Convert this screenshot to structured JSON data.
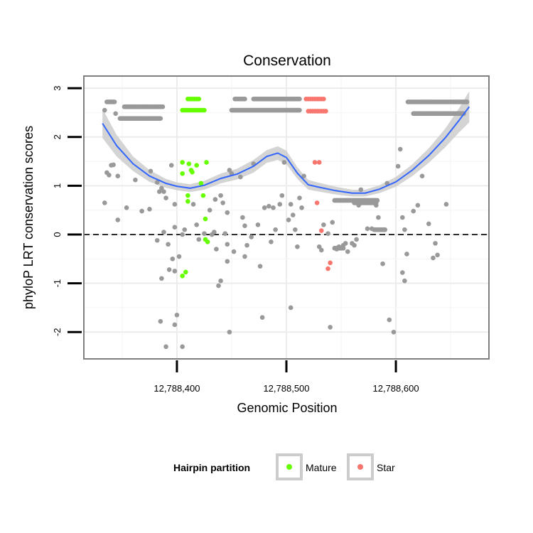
{
  "chart_data": {
    "type": "scatter",
    "title": "Conservation",
    "xlabel": "Genomic Position",
    "ylabel": "phyloP LRT conservation scores",
    "xlim": [
      12788315,
      12788685
    ],
    "ylim": [
      -2.55,
      3.25
    ],
    "x_ticks": [
      12788400,
      12788500,
      12788600
    ],
    "x_tick_labels": [
      "12,788,400",
      "12,788,500",
      "12,788,600"
    ],
    "y_ticks": [
      -2,
      -1,
      0,
      1,
      2,
      3
    ],
    "y_tick_labels": [
      "-2",
      "-1",
      "0",
      "1",
      "2",
      "3"
    ],
    "reference_line": {
      "y": 0,
      "style": "dashed"
    },
    "grid": true,
    "legend": {
      "title": "Hairpin partition",
      "position": "bottom",
      "entries": [
        {
          "label": "Mature",
          "color": "#66ff00"
        },
        {
          "label": "Star",
          "color": "#f8766d"
        }
      ]
    },
    "colors": {
      "other": "#999999",
      "Mature": "#66ff00",
      "Star": "#f8766d",
      "smooth": "#3366ff",
      "ribbon": "#cccccc"
    },
    "smooth": {
      "x": [
        12788332,
        12788345,
        12788360,
        12788375,
        12788390,
        12788400,
        12788412,
        12788425,
        12788440,
        12788455,
        12788470,
        12788482,
        12788492,
        12788500,
        12788510,
        12788520,
        12788530,
        12788545,
        12788560,
        12788572,
        12788585,
        12788600,
        12788615,
        12788630,
        12788645,
        12788658,
        12788667
      ],
      "y": [
        2.28,
        1.82,
        1.45,
        1.2,
        1.05,
        0.99,
        0.95,
        1.01,
        1.15,
        1.24,
        1.4,
        1.6,
        1.67,
        1.58,
        1.26,
        1.02,
        0.97,
        0.9,
        0.85,
        0.85,
        0.93,
        1.08,
        1.32,
        1.62,
        1.98,
        2.35,
        2.62
      ],
      "lower": [
        1.98,
        1.6,
        1.3,
        1.08,
        0.96,
        0.91,
        0.87,
        0.92,
        1.05,
        1.13,
        1.27,
        1.47,
        1.53,
        1.44,
        1.14,
        0.92,
        0.88,
        0.82,
        0.78,
        0.78,
        0.85,
        0.98,
        1.2,
        1.47,
        1.79,
        2.1,
        2.3
      ],
      "upper": [
        2.58,
        2.04,
        1.6,
        1.32,
        1.14,
        1.07,
        1.03,
        1.1,
        1.25,
        1.35,
        1.53,
        1.73,
        1.81,
        1.72,
        1.38,
        1.12,
        1.06,
        0.98,
        0.92,
        0.92,
        1.01,
        1.18,
        1.44,
        1.77,
        2.17,
        2.6,
        2.94
      ]
    },
    "series": [
      {
        "name": "Mature",
        "points": [
          [
            12788405,
            2.55
          ],
          [
            12788407,
            2.55
          ],
          [
            12788409,
            2.55
          ],
          [
            12788411,
            2.55
          ],
          [
            12788413,
            2.55
          ],
          [
            12788415,
            2.55
          ],
          [
            12788417,
            2.55
          ],
          [
            12788419,
            2.55
          ],
          [
            12788421,
            2.55
          ],
          [
            12788423,
            2.55
          ],
          [
            12788425,
            2.55
          ],
          [
            12788410,
            2.78
          ],
          [
            12788412,
            2.78
          ],
          [
            12788414,
            2.78
          ],
          [
            12788416,
            2.78
          ],
          [
            12788418,
            2.78
          ],
          [
            12788420,
            2.78
          ],
          [
            12788405,
            1.48
          ],
          [
            12788411,
            1.45
          ],
          [
            12788413,
            1.32
          ],
          [
            12788414,
            1.28
          ],
          [
            12788418,
            1.42
          ],
          [
            12788427,
            1.48
          ],
          [
            12788405,
            1.25
          ],
          [
            12788422,
            1.05
          ],
          [
            12788410,
            0.8
          ],
          [
            12788424,
            0.8
          ],
          [
            12788410,
            0.68
          ],
          [
            12788426,
            0.32
          ],
          [
            12788426,
            -0.1
          ],
          [
            12788428,
            -0.15
          ],
          [
            12788405,
            -0.85
          ],
          [
            12788408,
            -0.77
          ]
        ]
      },
      {
        "name": "Star",
        "points": [
          [
            12788518,
            2.78
          ],
          [
            12788520,
            2.78
          ],
          [
            12788522,
            2.78
          ],
          [
            12788524,
            2.78
          ],
          [
            12788526,
            2.78
          ],
          [
            12788528,
            2.78
          ],
          [
            12788530,
            2.78
          ],
          [
            12788532,
            2.78
          ],
          [
            12788534,
            2.78
          ],
          [
            12788520,
            2.53
          ],
          [
            12788522,
            2.53
          ],
          [
            12788524,
            2.53
          ],
          [
            12788526,
            2.53
          ],
          [
            12788528,
            2.53
          ],
          [
            12788530,
            2.53
          ],
          [
            12788532,
            2.53
          ],
          [
            12788534,
            2.53
          ],
          [
            12788536,
            2.53
          ],
          [
            12788526,
            1.48
          ],
          [
            12788530,
            1.48
          ],
          [
            12788528,
            0.65
          ],
          [
            12788532,
            0.08
          ],
          [
            12788540,
            -0.58
          ],
          [
            12788538,
            -0.7
          ]
        ]
      },
      {
        "name": "",
        "points": [
          [
            12788334,
            2.55
          ],
          [
            12788336,
            2.72
          ],
          [
            12788340,
            2.72
          ],
          [
            12788344,
            2.48
          ],
          [
            12788336,
            1.27
          ],
          [
            12788338,
            1.22
          ],
          [
            12788340,
            1.42
          ],
          [
            12788342,
            1.43
          ],
          [
            12788346,
            1.2
          ],
          [
            12788334,
            0.65
          ],
          [
            12788346,
            0.3
          ],
          [
            12788354,
            0.55
          ],
          [
            12788362,
            1.12
          ],
          [
            12788368,
            0.48
          ],
          [
            12788375,
            0.52
          ],
          [
            12788382,
            1.07
          ],
          [
            12788376,
            1.3
          ],
          [
            12788384,
            0.88
          ],
          [
            12788388,
            0.88
          ],
          [
            12788390,
            0.75
          ],
          [
            12788386,
            0.95
          ],
          [
            12788388,
            0.05
          ],
          [
            12788382,
            -0.12
          ],
          [
            12788395,
            1.42
          ],
          [
            12788398,
            0.62
          ],
          [
            12788398,
            0.15
          ],
          [
            12788392,
            -0.2
          ],
          [
            12788396,
            -0.5
          ],
          [
            12788393,
            -0.72
          ],
          [
            12788398,
            -0.75
          ],
          [
            12788386,
            -0.9
          ],
          [
            12788385,
            -1.78
          ],
          [
            12788400,
            -1.65
          ],
          [
            12788398,
            -1.85
          ],
          [
            12788390,
            -2.3
          ],
          [
            12788405,
            -2.3
          ],
          [
            12788402,
            -0.45
          ],
          [
            12788405,
            0.0
          ],
          [
            12788407,
            0.1
          ],
          [
            12788415,
            0.62
          ],
          [
            12788418,
            0.2
          ],
          [
            12788420,
            -0.1
          ],
          [
            12788425,
            0.02
          ],
          [
            12788432,
            0.0
          ],
          [
            12788434,
            0.05
          ],
          [
            12788436,
            -0.3
          ],
          [
            12788430,
            0.5
          ],
          [
            12788435,
            0.72
          ],
          [
            12788440,
            0.8
          ],
          [
            12788442,
            0.65
          ],
          [
            12788446,
            0.45
          ],
          [
            12788448,
            1.32
          ],
          [
            12788450,
            1.25
          ],
          [
            12788444,
            0.02
          ],
          [
            12788446,
            -0.2
          ],
          [
            12788446,
            -0.55
          ],
          [
            12788452,
            -0.35
          ],
          [
            12788440,
            -0.95
          ],
          [
            12788438,
            -1.05
          ],
          [
            12788448,
            -2.0
          ],
          [
            12788458,
            1.18
          ],
          [
            12788460,
            0.35
          ],
          [
            12788462,
            0.18
          ],
          [
            12788462,
            -0.45
          ],
          [
            12788464,
            -0.22
          ],
          [
            12788468,
            -0.05
          ],
          [
            12788470,
            1.45
          ],
          [
            12788474,
            0.2
          ],
          [
            12788476,
            -0.65
          ],
          [
            12788478,
            -1.7
          ],
          [
            12788480,
            0.55
          ],
          [
            12788484,
            0.58
          ],
          [
            12788486,
            -0.15
          ],
          [
            12788488,
            0.55
          ],
          [
            12788490,
            0.1
          ],
          [
            12788494,
            0.62
          ],
          [
            12788496,
            0.8
          ],
          [
            12788498,
            1.48
          ],
          [
            12788502,
            0.3
          ],
          [
            12788504,
            0.62
          ],
          [
            12788506,
            0.4
          ],
          [
            12788508,
            0.1
          ],
          [
            12788510,
            -0.25
          ],
          [
            12788512,
            0.75
          ],
          [
            12788514,
            0.55
          ],
          [
            12788516,
            1.2
          ],
          [
            12788504,
            -1.5
          ],
          [
            12788530,
            -0.25
          ],
          [
            12788532,
            -0.32
          ],
          [
            12788534,
            0.2
          ],
          [
            12788538,
            0.02
          ],
          [
            12788540,
            -1.9
          ],
          [
            12788542,
            0.25
          ],
          [
            12788546,
            -0.3
          ],
          [
            12788548,
            -0.25
          ],
          [
            12788552,
            -0.22
          ],
          [
            12788554,
            -0.18
          ],
          [
            12788556,
            -0.35
          ],
          [
            12788560,
            -0.18
          ],
          [
            12788562,
            -0.22
          ],
          [
            12788564,
            -0.1
          ],
          [
            12788568,
            0.92
          ],
          [
            12788566,
            0.6
          ],
          [
            12788574,
            0.12
          ],
          [
            12788578,
            0.12
          ],
          [
            12788582,
            0.6
          ],
          [
            12788584,
            0.35
          ],
          [
            12788586,
            0.1
          ],
          [
            12788588,
            -0.6
          ],
          [
            12788590,
            0.1
          ],
          [
            12788592,
            1.05
          ],
          [
            12788594,
            -1.75
          ],
          [
            12788598,
            -2.0
          ],
          [
            12788602,
            1.4
          ],
          [
            12788604,
            1.75
          ],
          [
            12788606,
            0.35
          ],
          [
            12788608,
            0.1
          ],
          [
            12788606,
            -0.78
          ],
          [
            12788608,
            -0.95
          ],
          [
            12788610,
            -0.4
          ],
          [
            12788616,
            0.48
          ],
          [
            12788620,
            0.6
          ],
          [
            12788624,
            1.2
          ],
          [
            12788630,
            0.22
          ],
          [
            12788634,
            -0.48
          ],
          [
            12788636,
            -0.18
          ],
          [
            12788638,
            -0.42
          ],
          [
            12788646,
            0.62
          ]
        ]
      }
    ],
    "bands": [
      {
        "x0": 12788337,
        "x1": 12788343,
        "y": 2.72
      },
      {
        "x0": 12788352,
        "x1": 12788387,
        "y": 2.62
      },
      {
        "x0": 12788348,
        "x1": 12788385,
        "y": 2.38
      },
      {
        "x0": 12788453,
        "x1": 12788462,
        "y": 2.78
      },
      {
        "x0": 12788470,
        "x1": 12788512,
        "y": 2.78
      },
      {
        "x0": 12788450,
        "x1": 12788512,
        "y": 2.55
      },
      {
        "x0": 12788544,
        "x1": 12788583,
        "y": 0.7
      },
      {
        "x0": 12788562,
        "x1": 12788582,
        "y": 0.65
      },
      {
        "x0": 12788544,
        "x1": 12788552,
        "y": -0.28
      },
      {
        "x0": 12788580,
        "x1": 12788590,
        "y": 0.1
      },
      {
        "x0": 12788611,
        "x1": 12788665,
        "y": 2.72
      },
      {
        "x0": 12788616,
        "x1": 12788662,
        "y": 2.48
      }
    ]
  }
}
